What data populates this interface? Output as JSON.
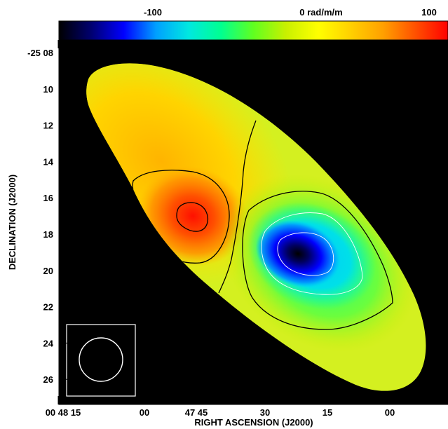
{
  "chart_data": {
    "type": "heatmap",
    "title": "",
    "colorbar": {
      "unit_label": "0 rad/m/m",
      "tick_values": [
        -100,
        0,
        100
      ],
      "tick_labels": [
        "-100",
        "0 rad/m/m",
        "100"
      ],
      "range": [
        -160,
        110
      ],
      "colormap": [
        "#000000",
        "#000070",
        "#0000ff",
        "#00a0ff",
        "#00e8e0",
        "#00ff90",
        "#60ff20",
        "#c8f000",
        "#ffff00",
        "#ffd000",
        "#ffa000",
        "#ff5000",
        "#ff0000"
      ]
    },
    "xlabel": "RIGHT ASCENSION (J2000)",
    "ylabel": "DECLINATION (J2000)",
    "x_ticks": [
      "00 48 15",
      "00",
      "47 45",
      "30",
      "15",
      "00"
    ],
    "y_ticks": [
      "-25 08",
      "10",
      "12",
      "14",
      "16",
      "18",
      "20",
      "22",
      "24",
      "26"
    ],
    "xlim": [
      "00 48 26",
      "00 46 53"
    ],
    "ylim": [
      "-25 27.2",
      "-25 08"
    ],
    "background": "#000000",
    "contour_color": "#000000",
    "features": [
      {
        "name": "positive extremum",
        "ra": "00 47 43",
        "dec": "-25 17.1",
        "value": 105
      },
      {
        "name": "negative extremum",
        "ra": "00 47 19",
        "dec": "-25 19.0",
        "value": -155
      },
      {
        "name": "zero crossing",
        "description": "0 rad/m/m contour separating halves"
      }
    ],
    "beam": {
      "shape": "circle",
      "location": "bottom-left",
      "color": "#ffffff"
    }
  }
}
